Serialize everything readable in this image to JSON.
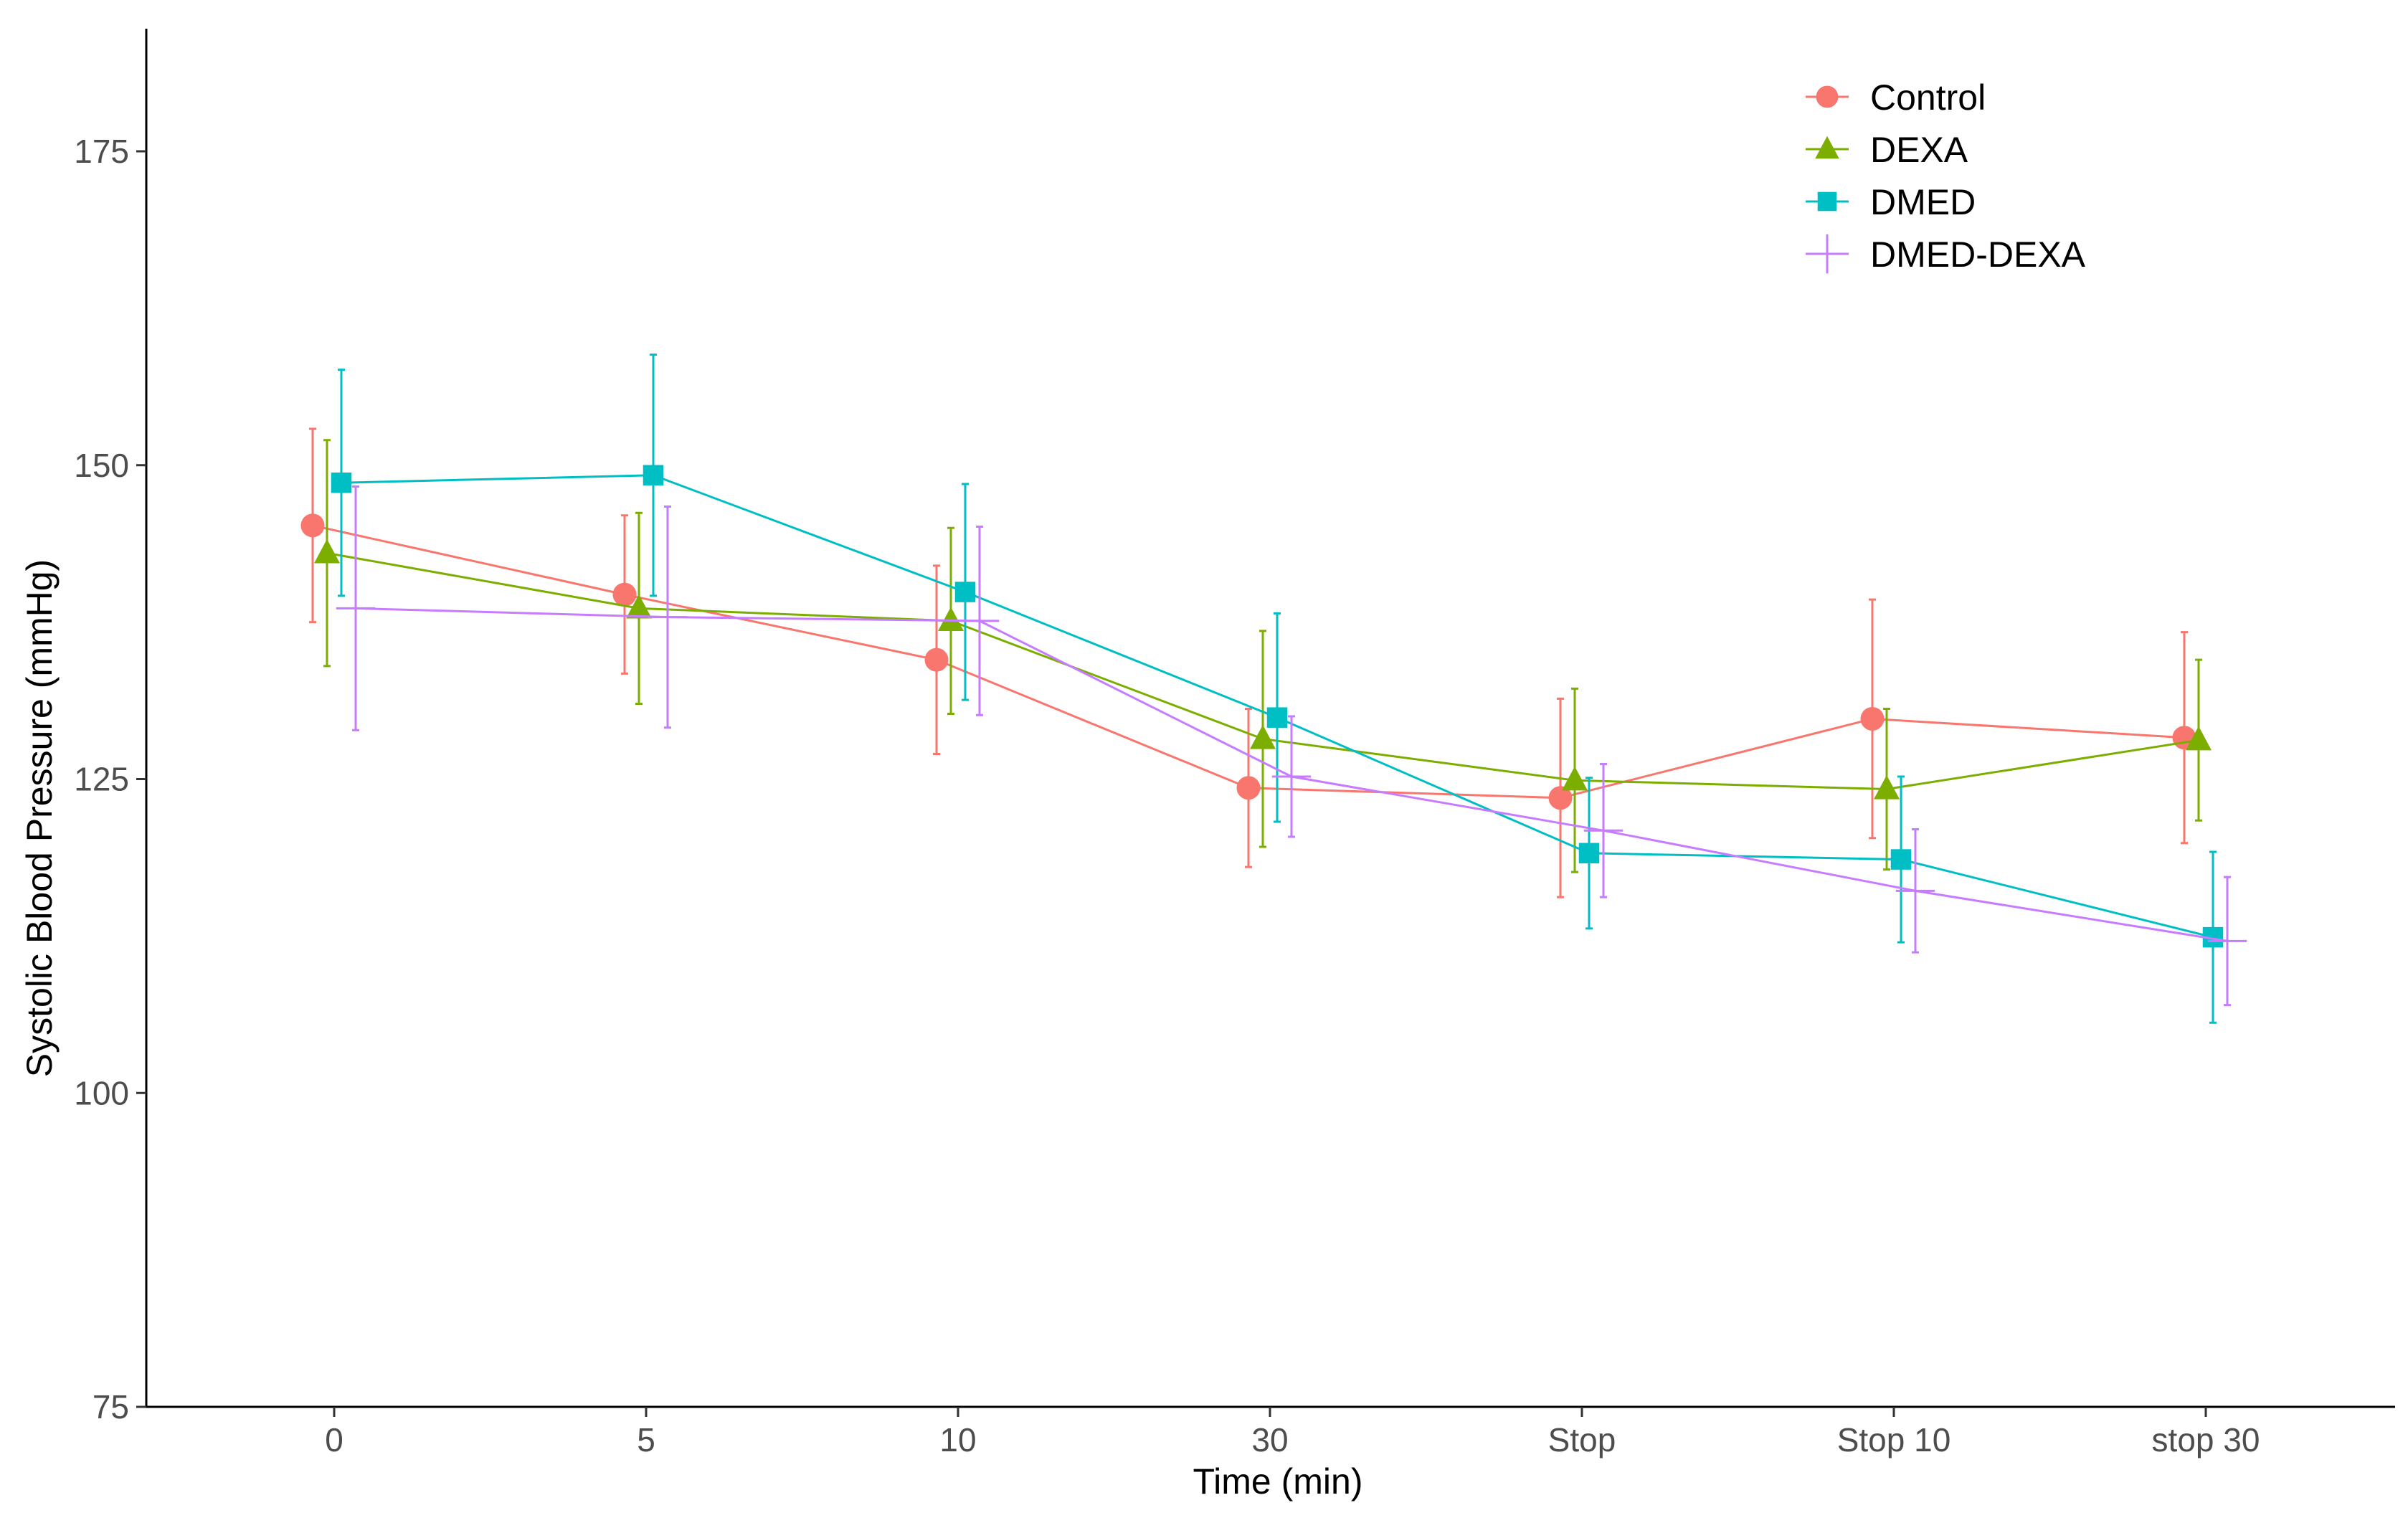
{
  "chart_data": {
    "type": "line",
    "title": "",
    "xlabel": "Time (min)",
    "ylabel": "Systolic Blood Pressure (mmHg)",
    "categories": [
      "0",
      "5",
      "10",
      "30",
      "Stop",
      "Stop 10",
      "stop 30"
    ],
    "ylim": [
      75,
      185
    ],
    "yticks": [
      75,
      100,
      125,
      150,
      175
    ],
    "grid": false,
    "legend_position": "top-right",
    "series": [
      {
        "name": "Control",
        "color": "#F8766D",
        "marker": "circle",
        "values": [
          145.2,
          139.7,
          134.5,
          124.3,
          123.5,
          129.8,
          128.3
        ],
        "lower": [
          137.5,
          133.4,
          127.0,
          118.0,
          115.6,
          120.3,
          119.9
        ],
        "upper": [
          152.9,
          146.0,
          142.0,
          130.6,
          131.4,
          139.3,
          136.7
        ]
      },
      {
        "name": "DEXA",
        "color": "#7CAE00",
        "marker": "triangle",
        "values": [
          143.0,
          138.6,
          137.6,
          128.2,
          124.9,
          124.2,
          128.1
        ],
        "lower": [
          134.0,
          131.0,
          130.2,
          119.6,
          117.6,
          117.8,
          121.7
        ],
        "upper": [
          152.0,
          146.2,
          145.0,
          136.8,
          132.2,
          130.6,
          134.5
        ]
      },
      {
        "name": "DMED",
        "color": "#00BFC4",
        "marker": "square",
        "values": [
          148.6,
          149.2,
          139.9,
          129.9,
          119.1,
          118.6,
          112.4
        ],
        "lower": [
          139.6,
          139.6,
          131.3,
          121.6,
          113.1,
          112.0,
          105.6
        ],
        "upper": [
          157.6,
          158.8,
          148.5,
          138.2,
          125.1,
          125.2,
          119.2
        ]
      },
      {
        "name": "DMED-DEXA",
        "color": "#C77CFF",
        "marker": "plus",
        "values": [
          138.6,
          137.9,
          137.6,
          125.2,
          120.9,
          116.1,
          112.1
        ],
        "lower": [
          128.9,
          129.1,
          130.1,
          120.4,
          115.6,
          111.2,
          107.0
        ],
        "upper": [
          148.3,
          146.7,
          145.1,
          130.0,
          126.2,
          121.0,
          117.2
        ]
      }
    ]
  }
}
